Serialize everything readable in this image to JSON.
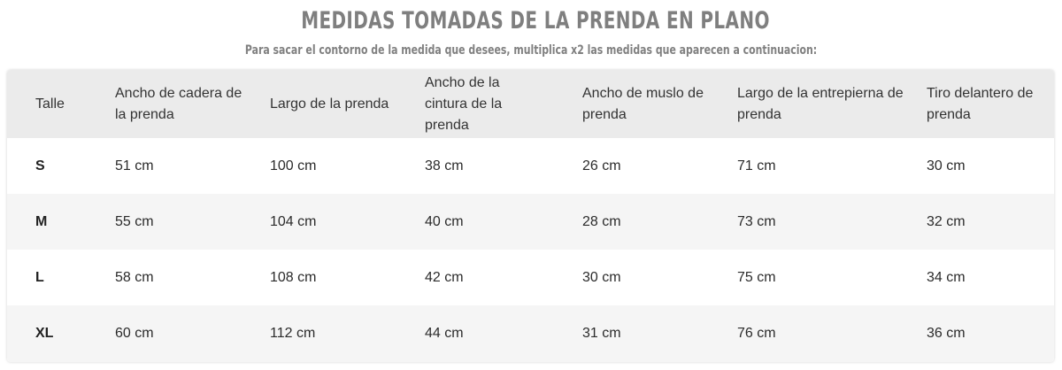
{
  "title": "MEDIDAS TOMADAS DE LA PRENDA EN PLANO",
  "subtitle": "Para sacar el contorno de la medida que desees, multiplica x2 las medidas que aparecen a continuacion:",
  "table": {
    "headers": [
      "Talle",
      "Ancho de cadera de la prenda",
      "Largo de la prenda",
      "Ancho de la cintura de la prenda",
      "Ancho de muslo de prenda",
      "Largo de la entrepierna de prenda",
      "Tiro delantero de prenda"
    ],
    "rows": [
      [
        "S",
        "51 cm",
        "100 cm",
        "38 cm",
        "26 cm",
        "71 cm",
        "30 cm"
      ],
      [
        "M",
        "55 cm",
        "104 cm",
        "40 cm",
        "28 cm",
        "73 cm",
        "32 cm"
      ],
      [
        "L",
        "58 cm",
        "108 cm",
        "42 cm",
        "30 cm",
        "75 cm",
        "34 cm"
      ],
      [
        "XL",
        "60 cm",
        "112 cm",
        "44 cm",
        "31 cm",
        "76 cm",
        "36 cm"
      ]
    ]
  },
  "colors": {
    "title": "#7f7f7f",
    "header_bg": "#ebebeb",
    "row_alt_bg": "#f5f5f5",
    "text": "#2b2b2b"
  }
}
